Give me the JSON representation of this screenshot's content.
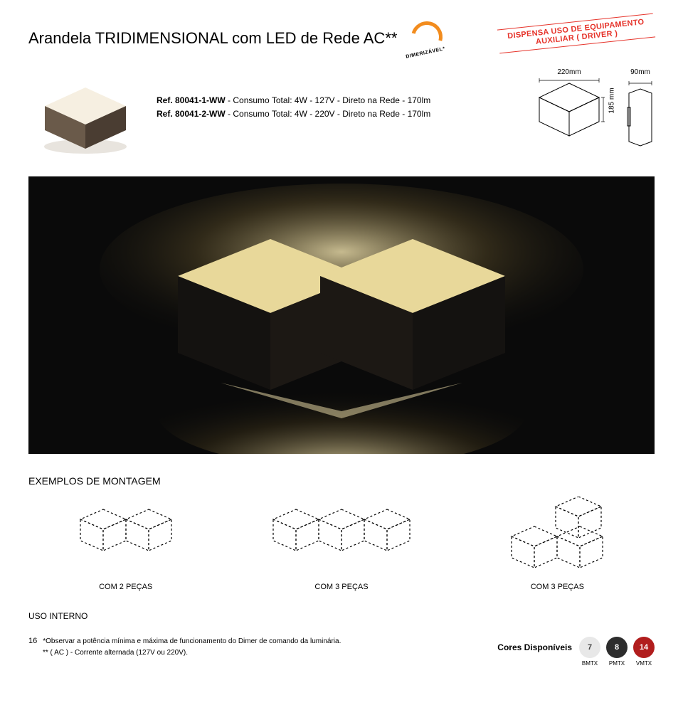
{
  "title": "Arandela TRIDIMENSIONAL com LED de Rede AC**",
  "badge": {
    "label": "DIMERIZÁVEL*",
    "arc_color": "#f28c1e"
  },
  "stamp": {
    "line1": "DISPENSA USO DE EQUIPAMENTO",
    "line2": "AUXILIAR ( DRIVER )",
    "color": "#e6332a"
  },
  "refs": [
    {
      "code": "Ref. 80041-1-WW",
      "desc": " - Consumo Total: 4W - 127V - Direto na Rede - 170lm"
    },
    {
      "code": "Ref. 80041-2-WW",
      "desc": " - Consumo Total: 4W - 220V - Direto na Rede - 170lm"
    }
  ],
  "dimensions": {
    "width": "220mm",
    "height": "185 mm",
    "depth": "90mm"
  },
  "product_render": {
    "top_face": "#f6efe1",
    "left_face": "#6a5a4a",
    "right_face": "#4a3d32",
    "shadow": "#2b2520"
  },
  "hero": {
    "bg": "#0a0a0a",
    "glow": "#f5e6b0",
    "top_face": "#e8d89a",
    "dark_face": "#141210"
  },
  "section_title": "EXEMPLOS DE MONTAGEM",
  "examples": [
    {
      "caption": "COM 2 PEÇAS",
      "layout": "two"
    },
    {
      "caption": "COM 3 PEÇAS",
      "layout": "three-row"
    },
    {
      "caption": "COM 3 PEÇAS",
      "layout": "three-stack"
    }
  ],
  "uso": "USO INTERNO",
  "footer": {
    "page": "16",
    "note1": "*Observar a potência mínima e máxima de funcionamento do Dimer de comando da luminária.",
    "note2": "** ( AC ) - Corrente alternada (127V ou 220V).",
    "cores_label": "Cores Disponíveis",
    "swatches": [
      {
        "num": "7",
        "code": "BMTX",
        "color": "#e8e8e8",
        "text": "#444"
      },
      {
        "num": "8",
        "code": "PMTX",
        "color": "#2d2d2d",
        "text": "#fff"
      },
      {
        "num": "14",
        "code": "VMTX",
        "color": "#b11d1d",
        "text": "#fff"
      }
    ]
  },
  "dashed": {
    "stroke": "#000",
    "dash": "3,3",
    "width": 1.2
  }
}
